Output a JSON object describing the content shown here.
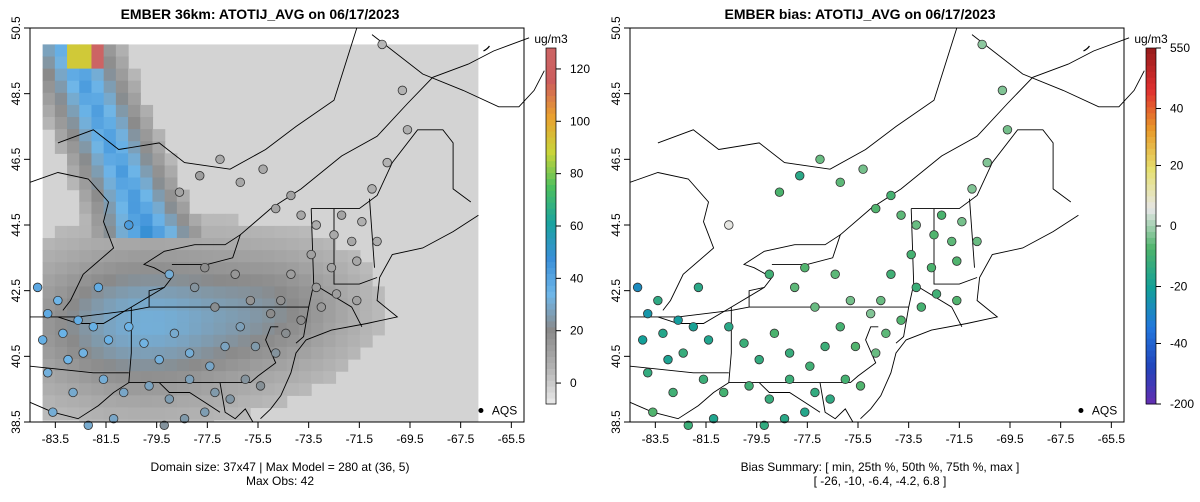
{
  "left": {
    "title": "EMBER 36km: ATOTIJ_AVG on 06/17/2023",
    "units": "ug/m3",
    "colorbar": {
      "ticks": [
        120,
        100,
        80,
        60,
        40,
        20,
        0
      ],
      "min": -8,
      "max": 128,
      "stops": [
        "#e6e6e6",
        "#b0b0b0",
        "#8a8a8a",
        "#6fb6e8",
        "#3a8fd8",
        "#1ba3a0",
        "#4bbf5f",
        "#c9d43a",
        "#e9a030",
        "#cc5d5d",
        "#cc6666"
      ]
    },
    "legend": "AQS",
    "caption_line1": "Domain size: 37x47 | Max Model = 280 at (36, 5)",
    "caption_line2": "Max Obs: 42"
  },
  "right": {
    "title": "EMBER bias: ATOTIJ_AVG on 06/17/2023",
    "units": "ug/m3",
    "colorbar": {
      "ticks": [
        550,
        40,
        20,
        0,
        -20,
        -40,
        -200
      ],
      "labels_pos": [
        0.0,
        0.17,
        0.33,
        0.5,
        0.67,
        0.83,
        1.0
      ],
      "stops": [
        "#9a1d1d",
        "#e03030",
        "#e89a2a",
        "#e6e070",
        "#e6e6e6",
        "#4db36b",
        "#13a099",
        "#2277dd",
        "#2244bb",
        "#6a2cb0"
      ]
    },
    "legend": "AQS",
    "caption_line1": "Bias Summary: [ min, 25th %, 50th %, 75th %, max ]",
    "caption_line2": "[ -26,   -10,   -6.4,   -4.2,   6.8 ]"
  },
  "axes": {
    "x_ticks": [
      "-83.5",
      "-81.5",
      "-79.5",
      "-77.5",
      "-75.5",
      "-73.5",
      "-71.5",
      "-69.5",
      "-67.5",
      "-65.5"
    ],
    "y_ticks": [
      "50.5",
      "48.5",
      "46.5",
      "44.5",
      "42.5",
      "40.5",
      "38.5"
    ],
    "xlim": [
      -84.5,
      -65.0
    ],
    "ylim": [
      38.5,
      50.5
    ]
  },
  "stations": [
    {
      "lon": -78.6,
      "lat": 45.5,
      "obs": 10,
      "bias": -7
    },
    {
      "lon": -77.8,
      "lat": 46.0,
      "obs": 12,
      "bias": -14
    },
    {
      "lon": -77.0,
      "lat": 46.5,
      "obs": 8,
      "bias": -4
    },
    {
      "lon": -76.2,
      "lat": 45.8,
      "obs": 9,
      "bias": -5
    },
    {
      "lon": -75.3,
      "lat": 46.2,
      "obs": 8,
      "bias": -3
    },
    {
      "lon": -74.8,
      "lat": 45.0,
      "obs": 10,
      "bias": -6
    },
    {
      "lon": -74.2,
      "lat": 45.4,
      "obs": 11,
      "bias": -8
    },
    {
      "lon": -73.8,
      "lat": 44.8,
      "obs": 9,
      "bias": -5
    },
    {
      "lon": -73.2,
      "lat": 44.5,
      "obs": 7,
      "bias": -4
    },
    {
      "lon": -72.5,
      "lat": 44.2,
      "obs": 8,
      "bias": -6
    },
    {
      "lon": -71.8,
      "lat": 44.0,
      "obs": 9,
      "bias": -5
    },
    {
      "lon": -72.2,
      "lat": 44.8,
      "obs": 10,
      "bias": -7
    },
    {
      "lon": -71.4,
      "lat": 44.6,
      "obs": 6,
      "bias": -3
    },
    {
      "lon": -70.8,
      "lat": 44.0,
      "obs": 7,
      "bias": -4
    },
    {
      "lon": -71.0,
      "lat": 45.6,
      "obs": 6,
      "bias": -2
    },
    {
      "lon": -70.4,
      "lat": 46.4,
      "obs": 5,
      "bias": -2
    },
    {
      "lon": -69.6,
      "lat": 47.4,
      "obs": 6,
      "bias": -3
    },
    {
      "lon": -69.8,
      "lat": 48.6,
      "obs": 5,
      "bias": -2
    },
    {
      "lon": -70.6,
      "lat": 50.0,
      "obs": 4,
      "bias": -1
    },
    {
      "lon": -71.6,
      "lat": 43.4,
      "obs": 9,
      "bias": -6
    },
    {
      "lon": -72.6,
      "lat": 43.2,
      "obs": 10,
      "bias": -7
    },
    {
      "lon": -73.4,
      "lat": 43.6,
      "obs": 11,
      "bias": -8
    },
    {
      "lon": -74.2,
      "lat": 43.0,
      "obs": 12,
      "bias": -9
    },
    {
      "lon": -73.2,
      "lat": 42.6,
      "obs": 13,
      "bias": -10
    },
    {
      "lon": -72.4,
      "lat": 42.4,
      "obs": 12,
      "bias": -9
    },
    {
      "lon": -71.6,
      "lat": 42.2,
      "obs": 11,
      "bias": -6
    },
    {
      "lon": -73.0,
      "lat": 42.0,
      "obs": 14,
      "bias": -8
    },
    {
      "lon": -73.8,
      "lat": 41.6,
      "obs": 18,
      "bias": -6
    },
    {
      "lon": -74.4,
      "lat": 41.2,
      "obs": 20,
      "bias": -5
    },
    {
      "lon": -74.8,
      "lat": 40.6,
      "obs": 22,
      "bias": -4
    },
    {
      "lon": -75.6,
      "lat": 40.8,
      "obs": 24,
      "bias": -6
    },
    {
      "lon": -76.2,
      "lat": 41.4,
      "obs": 26,
      "bias": -8
    },
    {
      "lon": -76.8,
      "lat": 40.8,
      "obs": 27,
      "bias": -10
    },
    {
      "lon": -77.4,
      "lat": 40.2,
      "obs": 28,
      "bias": -9
    },
    {
      "lon": -78.2,
      "lat": 40.6,
      "obs": 30,
      "bias": -11
    },
    {
      "lon": -78.8,
      "lat": 41.2,
      "obs": 29,
      "bias": -7
    },
    {
      "lon": -79.4,
      "lat": 40.4,
      "obs": 31,
      "bias": -12
    },
    {
      "lon": -80.0,
      "lat": 40.9,
      "obs": 32,
      "bias": -10
    },
    {
      "lon": -80.6,
      "lat": 41.4,
      "obs": 33,
      "bias": -14
    },
    {
      "lon": -81.4,
      "lat": 41.0,
      "obs": 34,
      "bias": -16
    },
    {
      "lon": -82.0,
      "lat": 41.4,
      "obs": 35,
      "bias": -18
    },
    {
      "lon": -82.6,
      "lat": 41.6,
      "obs": 36,
      "bias": -20
    },
    {
      "lon": -83.2,
      "lat": 41.2,
      "obs": 34,
      "bias": -15
    },
    {
      "lon": -83.8,
      "lat": 41.8,
      "obs": 37,
      "bias": -22
    },
    {
      "lon": -84.2,
      "lat": 42.6,
      "obs": 38,
      "bias": -26
    },
    {
      "lon": -83.4,
      "lat": 42.2,
      "obs": 33,
      "bias": -13
    },
    {
      "lon": -82.4,
      "lat": 40.6,
      "obs": 32,
      "bias": -11
    },
    {
      "lon": -81.6,
      "lat": 39.8,
      "obs": 30,
      "bias": -10
    },
    {
      "lon": -82.8,
      "lat": 39.4,
      "obs": 29,
      "bias": -9
    },
    {
      "lon": -83.8,
      "lat": 40.0,
      "obs": 31,
      "bias": -12
    },
    {
      "lon": -80.8,
      "lat": 39.4,
      "obs": 28,
      "bias": -8
    },
    {
      "lon": -79.8,
      "lat": 39.6,
      "obs": 27,
      "bias": -9
    },
    {
      "lon": -79.0,
      "lat": 39.2,
      "obs": 25,
      "bias": -11
    },
    {
      "lon": -78.2,
      "lat": 39.8,
      "obs": 26,
      "bias": -10
    },
    {
      "lon": -77.2,
      "lat": 39.4,
      "obs": 24,
      "bias": -12
    },
    {
      "lon": -76.6,
      "lat": 39.2,
      "obs": 23,
      "bias": -13
    },
    {
      "lon": -76.0,
      "lat": 39.8,
      "obs": 22,
      "bias": -8
    },
    {
      "lon": -75.4,
      "lat": 39.6,
      "obs": 21,
      "bias": -6
    },
    {
      "lon": -78.4,
      "lat": 38.6,
      "obs": 24,
      "bias": -14
    },
    {
      "lon": -77.6,
      "lat": 38.8,
      "obs": 25,
      "bias": -15
    },
    {
      "lon": -79.2,
      "lat": 38.4,
      "obs": 22,
      "bias": -12
    },
    {
      "lon": -81.2,
      "lat": 38.6,
      "obs": 28,
      "bias": -16
    },
    {
      "lon": -82.2,
      "lat": 38.4,
      "obs": 29,
      "bias": -10
    },
    {
      "lon": -83.6,
      "lat": 38.8,
      "obs": 30,
      "bias": -6
    },
    {
      "lon": -81.8,
      "lat": 42.6,
      "obs": 36,
      "bias": -14
    },
    {
      "lon": -80.6,
      "lat": 44.5,
      "obs": 42,
      "bias": 6.8
    },
    {
      "lon": -79.0,
      "lat": 43.0,
      "obs": 30,
      "bias": -9
    },
    {
      "lon": -78.0,
      "lat": 42.6,
      "obs": 22,
      "bias": -5
    },
    {
      "lon": -77.2,
      "lat": 42.0,
      "obs": 20,
      "bias": -4
    },
    {
      "lon": -75.8,
      "lat": 42.2,
      "obs": 16,
      "bias": -3
    },
    {
      "lon": -76.4,
      "lat": 43.0,
      "obs": 15,
      "bias": -5
    },
    {
      "lon": -77.6,
      "lat": 43.2,
      "obs": 18,
      "bias": -6
    },
    {
      "lon": -74.6,
      "lat": 42.2,
      "obs": 17,
      "bias": -4
    },
    {
      "lon": -75.0,
      "lat": 41.8,
      "obs": 19,
      "bias": -2
    },
    {
      "lon": -84.0,
      "lat": 41.0,
      "obs": 35,
      "bias": -19
    },
    {
      "lon": -83.0,
      "lat": 40.4,
      "obs": 33,
      "bias": -17
    }
  ]
}
